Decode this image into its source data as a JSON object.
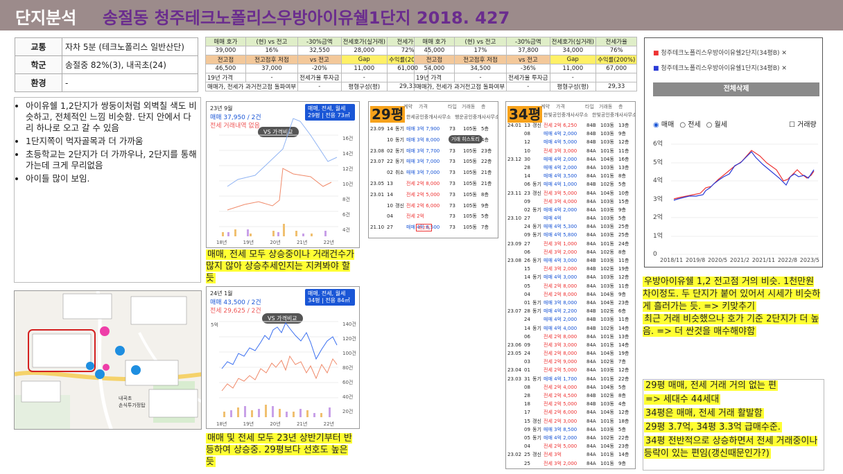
{
  "header": {
    "label": "단지분석",
    "title": "송절동 청주테크노폴리스우방아이유쉘1단지 2018. 427"
  },
  "info": [
    {
      "k": "교통",
      "v": "자차 5분 (테크노폴리스 일반산단)"
    },
    {
      "k": "학군",
      "v": "송절중 82%(3), 내곡초(24)"
    },
    {
      "k": "환경",
      "v": "-"
    }
  ],
  "bullets": [
    "아이유쉘 1,2단지가 쌍둥이처럼 외벽칠 색도 비슷하고, 전체적인 느낌 비슷함. 단지 안에서 다리 하나로 오고 갈 수 있음",
    "1단지쪽이 먹자골목과 더 가까움",
    "초등학교는 2단지가 더 가까우나, 2단지를 통해 가는데 크게 무리없음",
    "아이들 많이 보임."
  ],
  "grid_headers": {
    "a": "매매 호가",
    "b": "(현) vs 전고",
    "c": "-30%금액",
    "d": "전세호가(실거래)",
    "e": "전세가율",
    "f": "전고점",
    "g": "전고점후 저점",
    "h": "vs 전고",
    "i": "Gap",
    "j": "수익률(200%)",
    "k": "19년 가격",
    "l": "전세가율 투자금",
    "m": "매매가, 전세가 과거전고점 돌파여부",
    "n": "평형구성(평)"
  },
  "grid1": {
    "r1": [
      "39,000",
      "16%",
      "32,550",
      "28,000",
      "72%"
    ],
    "r2": [
      "46,500",
      "37,000",
      "-20%",
      "11,000",
      "61,000"
    ],
    "r3": [
      "-",
      "-"
    ],
    "r4": [
      "-",
      "29,33"
    ]
  },
  "grid2": {
    "r1": [
      "45,000",
      "17%",
      "37,800",
      "34,000",
      "76%"
    ],
    "r2": [
      "54,000",
      "34,500",
      "-36%",
      "11,000",
      "67,000"
    ],
    "r3": [
      "-",
      "-"
    ],
    "r4": [
      "-",
      "29,33"
    ]
  },
  "chart1": {
    "date": "23년 9월",
    "sale": "매매 37,950 / 2건",
    "rent": "전세 거래내역 없음",
    "pill1": "매매, 전세, 월세",
    "pill2": "29평 | 전용 73㎡",
    "vs": "VS 가격비교",
    "yaxis": [
      "16건",
      "14건",
      "12건",
      "10건",
      "8건",
      "6건",
      "4건",
      "2건"
    ],
    "x": [
      "18년",
      "19년",
      "20년",
      "21년",
      "22년"
    ]
  },
  "chart2": {
    "date": "24년 1월",
    "sale": "매매 43,500 / 2건",
    "rent": "전세 29,625 / 2건",
    "pill1": "매매, 전세, 월세",
    "pill2": "34평 | 전용 84㎡",
    "vs": "VS 가격비교",
    "yleft": "5억",
    "yaxis": [
      "140건",
      "120건",
      "100건",
      "80건",
      "60건",
      "40건",
      "20건"
    ],
    "x": [
      "18년",
      "19년",
      "20년",
      "21년",
      "22년"
    ]
  },
  "note1": "매매, 전세 모두 상승중이나 거래건수가 많지 않아 상승추세인지는 지켜봐야 할 듯",
  "note2": "매매 및 전세 모두 23년 상반기부터 반등하여 상승중. 29평보다 선호도 높은 듯",
  "t29": {
    "label": "29평",
    "agent": "한세공인중개사사무소",
    "agent2": "행운공인중개사사무소",
    "headers": [
      "계약",
      "가격",
      "타입",
      "거래동",
      "층"
    ],
    "tip": "거래 히스토리",
    "rows": [
      [
        "23.09",
        "14",
        "동기",
        "매매 3억 7,900",
        "73",
        "105동",
        "5층"
      ],
      [
        "",
        "10",
        "동기",
        "매매 3억 8,000",
        "",
        "",
        "4층"
      ],
      [
        "23.08",
        "02",
        "동기",
        "매매 3억 7,700",
        "73",
        "105동",
        "23층"
      ],
      [
        "23.07",
        "22",
        "동기",
        "매매 3억 7,000",
        "73",
        "105동",
        "22층"
      ],
      [
        "",
        "02",
        "취소",
        "매매 3억 7,000",
        "73",
        "105동",
        "21층"
      ],
      [
        "23.05",
        "13",
        "",
        "전세 2억 8,000",
        "73",
        "105동",
        "21층"
      ],
      [
        "23.01",
        "14",
        "",
        "전세 2억 5,000",
        "73",
        "105동",
        "8층"
      ],
      [
        "",
        "10",
        "갱신",
        "전세 2억 6,000",
        "73",
        "105동",
        "9층"
      ],
      [
        "",
        "04",
        "",
        "전세 2억",
        "73",
        "105동",
        "5층"
      ],
      [
        "21.10",
        "27",
        "",
        "매매 4억 6,500",
        "73",
        "105동",
        "7층"
      ]
    ],
    "tag": "최고가"
  },
  "t34": {
    "label": "34평",
    "agent": "한빛공인중개사사무소",
    "agent2": "한빛공인중개사사무소",
    "rows": [
      [
        "24.01",
        "13",
        "갱신",
        "전세 2억 6,250",
        "84B",
        "103동",
        "13층"
      ],
      [
        "",
        "08",
        "",
        "매매 4억 2,000",
        "84B",
        "103동",
        "9층"
      ],
      [
        "",
        "12",
        "",
        "매매 4억 5,000",
        "84B",
        "103동",
        "12층"
      ],
      [
        "",
        "10",
        "",
        "전세 3억 3,000",
        "84A",
        "101동",
        "11층"
      ],
      [
        "23.12",
        "30",
        "",
        "매매 4억 2,000",
        "84A",
        "104동",
        "16층"
      ],
      [
        "",
        "28",
        "",
        "매매 4억 2,000",
        "84A",
        "103동",
        "13층"
      ],
      [
        "",
        "14",
        "",
        "매매 4억 3,500",
        "84A",
        "101동",
        "8층"
      ],
      [
        "",
        "06",
        "동기",
        "매매 4억 1,000",
        "84B",
        "102동",
        "5층"
      ],
      [
        "23.11",
        "23",
        "갱신",
        "전세 3억 5,000",
        "84A",
        "104동",
        "10층"
      ],
      [
        "",
        "09",
        "",
        "전세 3억 4,000",
        "84A",
        "103동",
        "15층"
      ],
      [
        "",
        "02",
        "동기",
        "매매 4억 2,000",
        "84A",
        "103동",
        "9층"
      ],
      [
        "23.10",
        "27",
        "",
        "매매 4억",
        "84A",
        "103동",
        "5층"
      ],
      [
        "",
        "24",
        "동기",
        "매매 4억 5,300",
        "84A",
        "103동",
        "25층"
      ],
      [
        "",
        "09",
        "동기",
        "매매 4억 5,800",
        "84A",
        "103동",
        "25층"
      ],
      [
        "23.09",
        "27",
        "",
        "전세 3억 1,000",
        "84A",
        "101동",
        "24층"
      ],
      [
        "",
        "06",
        "",
        "전세 3억 2,000",
        "84A",
        "102동",
        "8층"
      ],
      [
        "23.08",
        "26",
        "동기",
        "매매 4억 3,000",
        "84B",
        "103동",
        "11층"
      ],
      [
        "",
        "15",
        "",
        "전세 3억 2,000",
        "84B",
        "102동",
        "19층"
      ],
      [
        "",
        "14",
        "동기",
        "매매 4억 3,000",
        "84A",
        "103동",
        "12층"
      ],
      [
        "",
        "05",
        "",
        "전세 2억 8,000",
        "84A",
        "103동",
        "11층"
      ],
      [
        "",
        "04",
        "",
        "전세 2억 8,000",
        "84A",
        "104동",
        "9층"
      ],
      [
        "",
        "01",
        "동기",
        "매매 3억 8,000",
        "84A",
        "104동",
        "23층"
      ],
      [
        "23.07",
        "28",
        "동기",
        "매매 4억 2,200",
        "84B",
        "102동",
        "6층"
      ],
      [
        "",
        "24",
        "",
        "매매 4억 2,000",
        "84B",
        "103동",
        "11층"
      ],
      [
        "",
        "14",
        "동기",
        "매매 4억 4,000",
        "84B",
        "102동",
        "14층"
      ],
      [
        "",
        "06",
        "",
        "전세 2억 8,000",
        "84A",
        "101동",
        "13층"
      ],
      [
        "23.06",
        "09",
        "",
        "전세 3억 3,000",
        "84A",
        "101동",
        "14층"
      ],
      [
        "23.05",
        "24",
        "",
        "전세 2억 8,000",
        "84A",
        "104동",
        "19층"
      ],
      [
        "",
        "03",
        "",
        "전세 2억 9,000",
        "84A",
        "102동",
        "7층"
      ],
      [
        "23.04",
        "01",
        "",
        "전세 2억 5,000",
        "84A",
        "103동",
        "12층"
      ],
      [
        "23.03",
        "31",
        "동기",
        "매매 4억 1,700",
        "84A",
        "101동",
        "22층"
      ],
      [
        "",
        "08",
        "",
        "전세 2억 4,000",
        "84A",
        "104동",
        "5층"
      ],
      [
        "",
        "28",
        "",
        "전세 2억 4,500",
        "84B",
        "102동",
        "8층"
      ],
      [
        "",
        "18",
        "",
        "전세 2억 5,000",
        "84B",
        "103동",
        "4층"
      ],
      [
        "",
        "17",
        "",
        "전세 2억 6,000",
        "84A",
        "104동",
        "12층"
      ],
      [
        "",
        "15",
        "갱신",
        "전세 2억 3,000",
        "84A",
        "101동",
        "18층"
      ],
      [
        "",
        "09",
        "동기",
        "매매 3억 8,500",
        "84A",
        "103동",
        "5층"
      ],
      [
        "",
        "05",
        "동기",
        "매매 4억 2,000",
        "84A",
        "102동",
        "22층"
      ],
      [
        "",
        "04",
        "",
        "전세 2억 5,000",
        "84A",
        "104동",
        "23층"
      ],
      [
        "23.02",
        "25",
        "갱신",
        "전세 3억",
        "84A",
        "101동",
        "14층"
      ],
      [
        "",
        "25",
        "",
        "전세 3억 2,000",
        "84A",
        "101동",
        "9층"
      ]
    ]
  },
  "compare": {
    "legend1": "청주테크노폴리스우방아이유쉘2단지(34평B)",
    "legend2": "청주테크노폴리스우방아이유쉘1단지(34평B)",
    "delete": "전체삭제",
    "radio": [
      "매매",
      "전세",
      "월세"
    ],
    "check": "거래량",
    "y": [
      "6억",
      "5억",
      "4억",
      "3억",
      "2억",
      "1억",
      "0"
    ],
    "x": [
      "2018/11",
      "2019/8",
      "2020/5",
      "2021/2",
      "2021/11",
      "2022/8",
      "2023/5"
    ],
    "color1": "#e33",
    "color2": "#2a3bd6"
  },
  "note3": "우방아이유쉘 1,2 전고점 거의 비슷. 1천만원 차이정도. 두 단지가 붙어 있어서 시세가 비슷하게 흘러가는 듯. => 키맞추기",
  "note4": "최근 거래 비슷했으나 호가 기준 2단지가 더 높음.  => 더 싼것을 매수해야함",
  "summary": [
    "29평 매매, 전세 거래 거의 없는 편",
    " => 세대수 44세대",
    "34평은 매매, 전세 거래 활발함",
    "29평 3.7억, 34평 3.3억 급매수준.",
    "34평 전반적으로 상승하면서 전세 거래중이나 등락이 있는 편임(갱신때문인가?)"
  ],
  "map": {
    "label": "내곡초\n손식투가정탑"
  }
}
